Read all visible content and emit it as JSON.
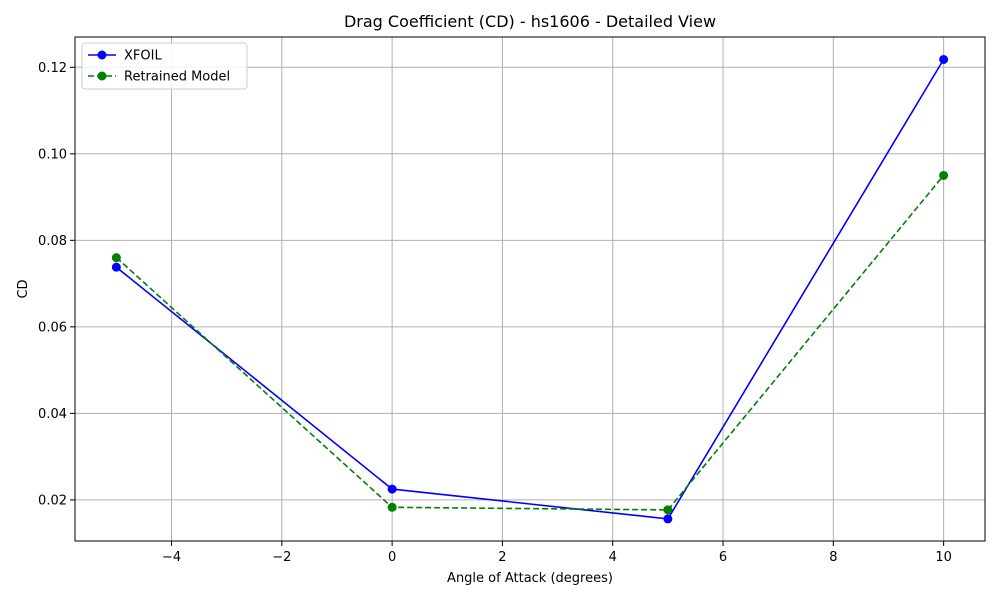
{
  "chart_data": {
    "type": "line",
    "title": "Drag Coefficient (CD) - hs1606 - Detailed View",
    "xlabel": "Angle of Attack (degrees)",
    "ylabel": "CD",
    "xlim": [
      -5.75,
      10.75
    ],
    "ylim": [
      0.0105,
      0.127
    ],
    "x_ticks": [
      -4,
      -2,
      0,
      2,
      4,
      6,
      8,
      10
    ],
    "x_tick_labels": [
      "−4",
      "−2",
      "0",
      "2",
      "4",
      "6",
      "8",
      "10"
    ],
    "y_ticks": [
      0.02,
      0.04,
      0.06,
      0.08,
      0.1,
      0.12
    ],
    "y_tick_labels": [
      "0.02",
      "0.04",
      "0.06",
      "0.08",
      "0.10",
      "0.12"
    ],
    "grid": true,
    "legend_position": "top-left",
    "series": [
      {
        "name": "XFOIL",
        "color": "#0000ff",
        "dash": "solid",
        "x": [
          -5,
          0,
          5,
          10
        ],
        "y": [
          0.0738,
          0.0225,
          0.0156,
          0.1218
        ]
      },
      {
        "name": "Retrained Model",
        "color": "#008000",
        "dash": "dashed",
        "x": [
          -5,
          0,
          5,
          10
        ],
        "y": [
          0.076,
          0.0183,
          0.0177,
          0.095
        ]
      }
    ]
  }
}
